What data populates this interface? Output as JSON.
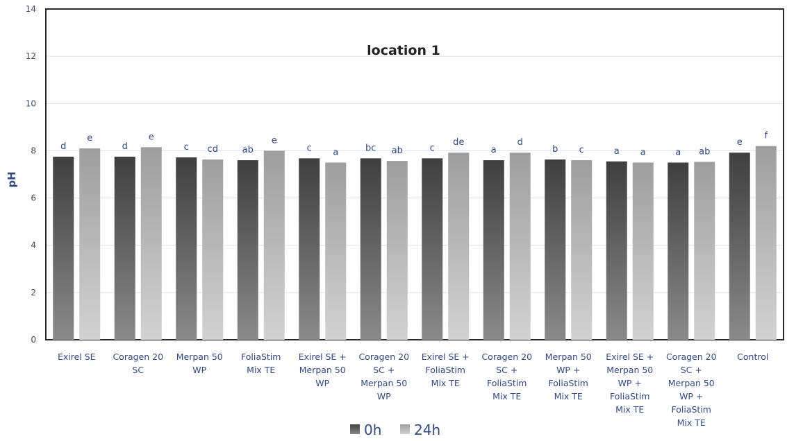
{
  "chart_data": {
    "type": "bar",
    "title": "location 1",
    "ylabel": "pH",
    "xlabel": "",
    "ylim": [
      0,
      14
    ],
    "yticks": [
      0,
      2,
      4,
      6,
      8,
      10,
      12,
      14
    ],
    "grid": true,
    "legend_position": "bottom",
    "categories": [
      [
        "Exirel SE"
      ],
      [
        "Coragen 20",
        "SC"
      ],
      [
        "Merpan 50",
        "WP"
      ],
      [
        "FoliaStim",
        "Mix TE"
      ],
      [
        "Exirel SE +",
        "Merpan 50",
        "WP"
      ],
      [
        "Coragen 20",
        "SC +",
        "Merpan 50",
        "WP"
      ],
      [
        "Exirel SE +",
        "FoliaStim",
        "Mix TE"
      ],
      [
        "Coragen 20",
        "SC +",
        "FoliaStim",
        "Mix TE"
      ],
      [
        "Merpan 50",
        "WP +",
        "FoliaStim",
        "Mix TE"
      ],
      [
        "Exirel SE +",
        "Merpan 50",
        "WP +",
        "FoliaStim",
        "Mix TE"
      ],
      [
        "Coragen 20",
        "SC +",
        "Merpan 50",
        "WP +",
        "FoliaStim",
        "Mix TE"
      ],
      [
        "Control"
      ]
    ],
    "series": [
      {
        "name": "0h",
        "color_top": "#3f3f3f",
        "color_bottom": "#8a8a8a",
        "values": [
          7.75,
          7.75,
          7.72,
          7.6,
          7.68,
          7.68,
          7.68,
          7.6,
          7.63,
          7.55,
          7.5,
          7.92
        ],
        "labels": [
          "d",
          "d",
          "c",
          "ab",
          "c",
          "bc",
          "c",
          "a",
          "b",
          "a",
          "a",
          "e"
        ]
      },
      {
        "name": "24h",
        "color_top": "#9e9e9e",
        "color_bottom": "#d2d2d2",
        "values": [
          8.1,
          8.15,
          7.63,
          8.0,
          7.5,
          7.57,
          7.92,
          7.92,
          7.6,
          7.5,
          7.53,
          8.2
        ],
        "labels": [
          "e",
          "e",
          "cd",
          "e",
          "a",
          "ab",
          "de",
          "d",
          "c",
          "a",
          "ab",
          "f"
        ]
      }
    ]
  }
}
